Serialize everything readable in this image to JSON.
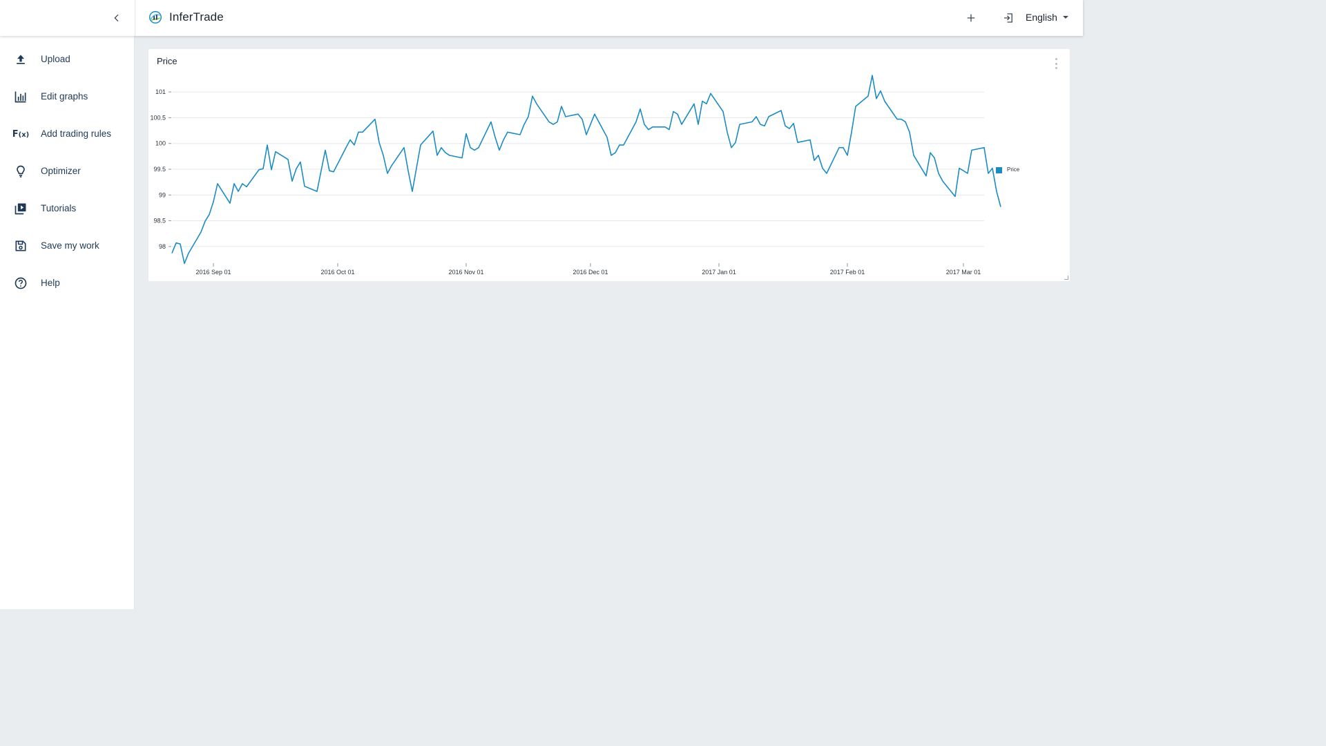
{
  "app": {
    "title": "InferTrade",
    "language": "English",
    "icons": {
      "collapse": "chevron-left-icon",
      "logo": "infertrade-logo-icon",
      "add": "plus-icon",
      "login": "login-icon",
      "language_dropdown": "caret-down-icon"
    }
  },
  "sidebar": {
    "items": [
      {
        "label": "Upload",
        "icon": "upload-icon"
      },
      {
        "label": "Edit graphs",
        "icon": "bar-chart-icon"
      },
      {
        "label": "Add trading rules",
        "icon": "function-icon"
      },
      {
        "label": "Optimizer",
        "icon": "lightbulb-icon"
      },
      {
        "label": "Tutorials",
        "icon": "video-library-icon"
      },
      {
        "label": "Save my work",
        "icon": "save-icon"
      },
      {
        "label": "Help",
        "icon": "help-circle-icon"
      }
    ]
  },
  "fx_icon": {
    "main": "F",
    "sub": "(x)"
  },
  "colors": {
    "accent": "#1b8bc3",
    "background": "#e9edf0",
    "nav_text": "#1f3a55",
    "gridline": "#e4e7ea"
  },
  "chart_card": {
    "title": "Price"
  },
  "chart_data": {
    "type": "line",
    "title": "Price",
    "series": [
      {
        "name": "Price",
        "color": "#1b8bc3",
        "points": [
          [
            "2016-08-22",
            97.87
          ],
          [
            "2016-08-23",
            98.07
          ],
          [
            "2016-08-24",
            98.05
          ],
          [
            "2016-08-25",
            97.67
          ],
          [
            "2016-08-26",
            97.87
          ],
          [
            "2016-08-29",
            98.28
          ],
          [
            "2016-08-30",
            98.49
          ],
          [
            "2016-08-31",
            98.62
          ],
          [
            "2016-09-01",
            98.87
          ],
          [
            "2016-09-02",
            99.22
          ],
          [
            "2016-09-05",
            98.84
          ],
          [
            "2016-09-06",
            99.22
          ],
          [
            "2016-09-07",
            99.07
          ],
          [
            "2016-09-08",
            99.22
          ],
          [
            "2016-09-09",
            99.16
          ],
          [
            "2016-09-12",
            99.49
          ],
          [
            "2016-09-13",
            99.51
          ],
          [
            "2016-09-14",
            99.97
          ],
          [
            "2016-09-15",
            99.49
          ],
          [
            "2016-09-16",
            99.84
          ],
          [
            "2016-09-19",
            99.69
          ],
          [
            "2016-09-20",
            99.27
          ],
          [
            "2016-09-21",
            99.51
          ],
          [
            "2016-09-22",
            99.64
          ],
          [
            "2016-09-23",
            99.17
          ],
          [
            "2016-09-26",
            99.07
          ],
          [
            "2016-09-27",
            99.47
          ],
          [
            "2016-09-28",
            99.87
          ],
          [
            "2016-09-29",
            99.47
          ],
          [
            "2016-09-30",
            99.45
          ],
          [
            "2016-10-03",
            99.92
          ],
          [
            "2016-10-04",
            100.07
          ],
          [
            "2016-10-05",
            99.97
          ],
          [
            "2016-10-06",
            100.22
          ],
          [
            "2016-10-07",
            100.22
          ],
          [
            "2016-10-10",
            100.47
          ],
          [
            "2016-10-11",
            100.02
          ],
          [
            "2016-10-12",
            99.77
          ],
          [
            "2016-10-13",
            99.42
          ],
          [
            "2016-10-14",
            99.57
          ],
          [
            "2016-10-17",
            99.92
          ],
          [
            "2016-10-18",
            99.47
          ],
          [
            "2016-10-19",
            99.07
          ],
          [
            "2016-10-20",
            99.52
          ],
          [
            "2016-10-21",
            99.97
          ],
          [
            "2016-10-24",
            100.24
          ],
          [
            "2016-10-25",
            99.77
          ],
          [
            "2016-10-26",
            99.92
          ],
          [
            "2016-10-27",
            99.82
          ],
          [
            "2016-10-28",
            99.77
          ],
          [
            "2016-10-31",
            99.72
          ],
          [
            "2016-11-01",
            100.19
          ],
          [
            "2016-11-02",
            99.92
          ],
          [
            "2016-11-03",
            99.87
          ],
          [
            "2016-11-04",
            99.92
          ],
          [
            "2016-11-07",
            100.42
          ],
          [
            "2016-11-08",
            100.12
          ],
          [
            "2016-11-09",
            99.87
          ],
          [
            "2016-11-10",
            100.07
          ],
          [
            "2016-11-11",
            100.22
          ],
          [
            "2016-11-14",
            100.17
          ],
          [
            "2016-11-15",
            100.37
          ],
          [
            "2016-11-16",
            100.52
          ],
          [
            "2016-11-17",
            100.92
          ],
          [
            "2016-11-18",
            100.77
          ],
          [
            "2016-11-21",
            100.42
          ],
          [
            "2016-11-22",
            100.37
          ],
          [
            "2016-11-23",
            100.42
          ],
          [
            "2016-11-24",
            100.72
          ],
          [
            "2016-11-25",
            100.52
          ],
          [
            "2016-11-28",
            100.57
          ],
          [
            "2016-11-29",
            100.47
          ],
          [
            "2016-11-30",
            100.17
          ],
          [
            "2016-12-01",
            100.37
          ],
          [
            "2016-12-02",
            100.57
          ],
          [
            "2016-12-05",
            100.12
          ],
          [
            "2016-12-06",
            99.77
          ],
          [
            "2016-12-07",
            99.82
          ],
          [
            "2016-12-08",
            99.97
          ],
          [
            "2016-12-09",
            99.97
          ],
          [
            "2016-12-12",
            100.42
          ],
          [
            "2016-12-13",
            100.67
          ],
          [
            "2016-12-14",
            100.37
          ],
          [
            "2016-12-15",
            100.27
          ],
          [
            "2016-12-16",
            100.32
          ],
          [
            "2016-12-19",
            100.32
          ],
          [
            "2016-12-20",
            100.27
          ],
          [
            "2016-12-21",
            100.62
          ],
          [
            "2016-12-22",
            100.57
          ],
          [
            "2016-12-23",
            100.37
          ],
          [
            "2016-12-26",
            100.77
          ],
          [
            "2016-12-27",
            100.37
          ],
          [
            "2016-12-28",
            100.82
          ],
          [
            "2016-12-29",
            100.77
          ],
          [
            "2016-12-30",
            100.97
          ],
          [
            "2017-01-02",
            100.62
          ],
          [
            "2017-01-03",
            100.22
          ],
          [
            "2017-01-04",
            99.92
          ],
          [
            "2017-01-05",
            100.02
          ],
          [
            "2017-01-06",
            100.37
          ],
          [
            "2017-01-09",
            100.42
          ],
          [
            "2017-01-10",
            100.52
          ],
          [
            "2017-01-11",
            100.37
          ],
          [
            "2017-01-12",
            100.34
          ],
          [
            "2017-01-13",
            100.52
          ],
          [
            "2017-01-16",
            100.64
          ],
          [
            "2017-01-17",
            100.34
          ],
          [
            "2017-01-18",
            100.29
          ],
          [
            "2017-01-19",
            100.39
          ],
          [
            "2017-01-20",
            100.02
          ],
          [
            "2017-01-23",
            100.07
          ],
          [
            "2017-01-24",
            99.67
          ],
          [
            "2017-01-25",
            99.77
          ],
          [
            "2017-01-26",
            99.52
          ],
          [
            "2017-01-27",
            99.42
          ],
          [
            "2017-01-30",
            99.92
          ],
          [
            "2017-01-31",
            99.92
          ],
          [
            "2017-02-01",
            99.77
          ],
          [
            "2017-02-02",
            100.22
          ],
          [
            "2017-02-03",
            100.72
          ],
          [
            "2017-02-06",
            100.92
          ],
          [
            "2017-02-07",
            101.32
          ],
          [
            "2017-02-08",
            100.87
          ],
          [
            "2017-02-09",
            101.02
          ],
          [
            "2017-02-10",
            100.82
          ],
          [
            "2017-02-13",
            100.47
          ],
          [
            "2017-02-14",
            100.47
          ],
          [
            "2017-02-15",
            100.42
          ],
          [
            "2017-02-16",
            100.22
          ],
          [
            "2017-02-17",
            99.77
          ],
          [
            "2017-02-20",
            99.37
          ],
          [
            "2017-02-21",
            99.82
          ],
          [
            "2017-02-22",
            99.72
          ],
          [
            "2017-02-23",
            99.42
          ],
          [
            "2017-02-24",
            99.27
          ],
          [
            "2017-02-27",
            98.97
          ],
          [
            "2017-02-28",
            99.52
          ],
          [
            "2017-03-01",
            99.47
          ],
          [
            "2017-03-02",
            99.42
          ],
          [
            "2017-03-03",
            99.87
          ],
          [
            "2017-03-06",
            99.92
          ],
          [
            "2017-03-07",
            99.42
          ],
          [
            "2017-03-08",
            99.52
          ],
          [
            "2017-03-09",
            99.07
          ],
          [
            "2017-03-10",
            98.77
          ]
        ]
      }
    ],
    "xlabel": "",
    "ylabel": "",
    "x_ticks": [
      {
        "date": "2016-09-01",
        "label": "2016 Sep 01"
      },
      {
        "date": "2016-10-01",
        "label": "2016 Oct 01"
      },
      {
        "date": "2016-11-01",
        "label": "2016 Nov 01"
      },
      {
        "date": "2016-12-01",
        "label": "2016 Dec 01"
      },
      {
        "date": "2017-01-01",
        "label": "2017 Jan 01"
      },
      {
        "date": "2017-02-01",
        "label": "2017 Feb 01"
      },
      {
        "date": "2017-03-01",
        "label": "2017 Mar 01"
      }
    ],
    "xlim": [
      "2016-08-22",
      "2017-03-06"
    ],
    "y_ticks": [
      98,
      98.5,
      99,
      99.5,
      100,
      100.5,
      101
    ],
    "ylim": [
      97.65,
      101.35
    ],
    "grid": true,
    "legend": {
      "position": "right",
      "entries": [
        "Price"
      ]
    }
  }
}
